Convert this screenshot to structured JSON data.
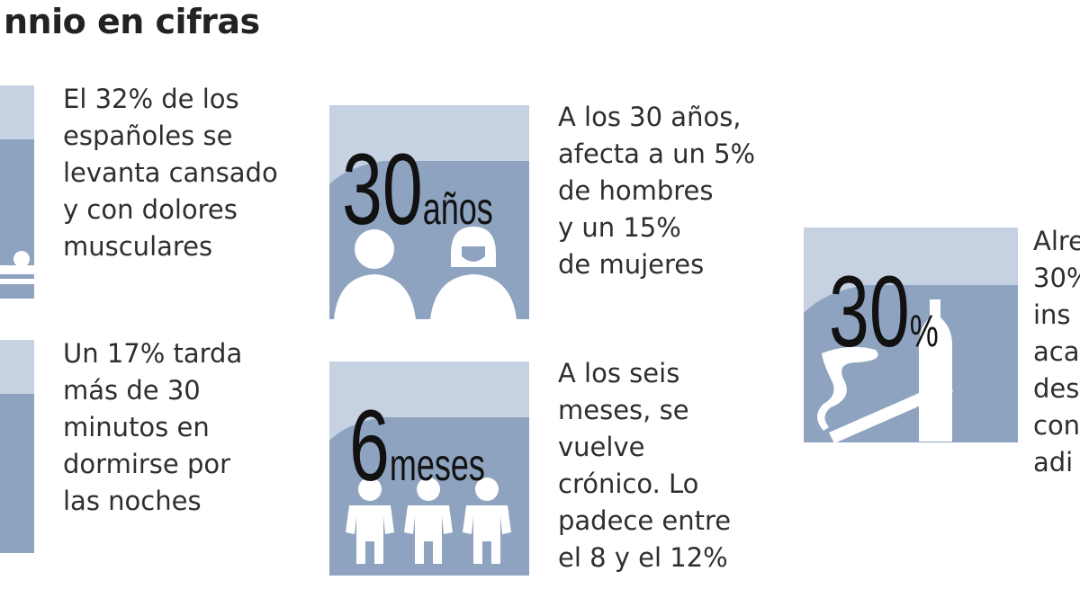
{
  "title": "nnio en cifras",
  "colors": {
    "light": "#c6d1e2",
    "dark": "#8ea3c0",
    "icon": "#ffffff"
  },
  "items": [
    {
      "text": "El 32% de los\nespañoles se\nlevanta cansado\ny con dolores\nmusculares",
      "icon": "bed-icon"
    },
    {
      "text": "Un 17% tarda\nmás de 30\nminutos en\ndormirse por\nlas noches",
      "icon": "clock-icon"
    },
    {
      "number": "30",
      "unit": "años",
      "text": "A los 30 años,\nafecta a un 5%\nde hombres\ny un 15%\nde mujeres",
      "icon": "man-woman-icon"
    },
    {
      "number": "6",
      "unit": "meses",
      "text": "A los seis\nmeses, se\nvuelve\ncrónico. Lo\npadece entre\nel 8 y el 12%",
      "icon": "people-icon"
    },
    {
      "number": "30",
      "unit": "%",
      "text": "Alre\n30%\nins\naca\ndes\ncon\nadi",
      "icon": "cigarette-bottle-icon"
    }
  ]
}
